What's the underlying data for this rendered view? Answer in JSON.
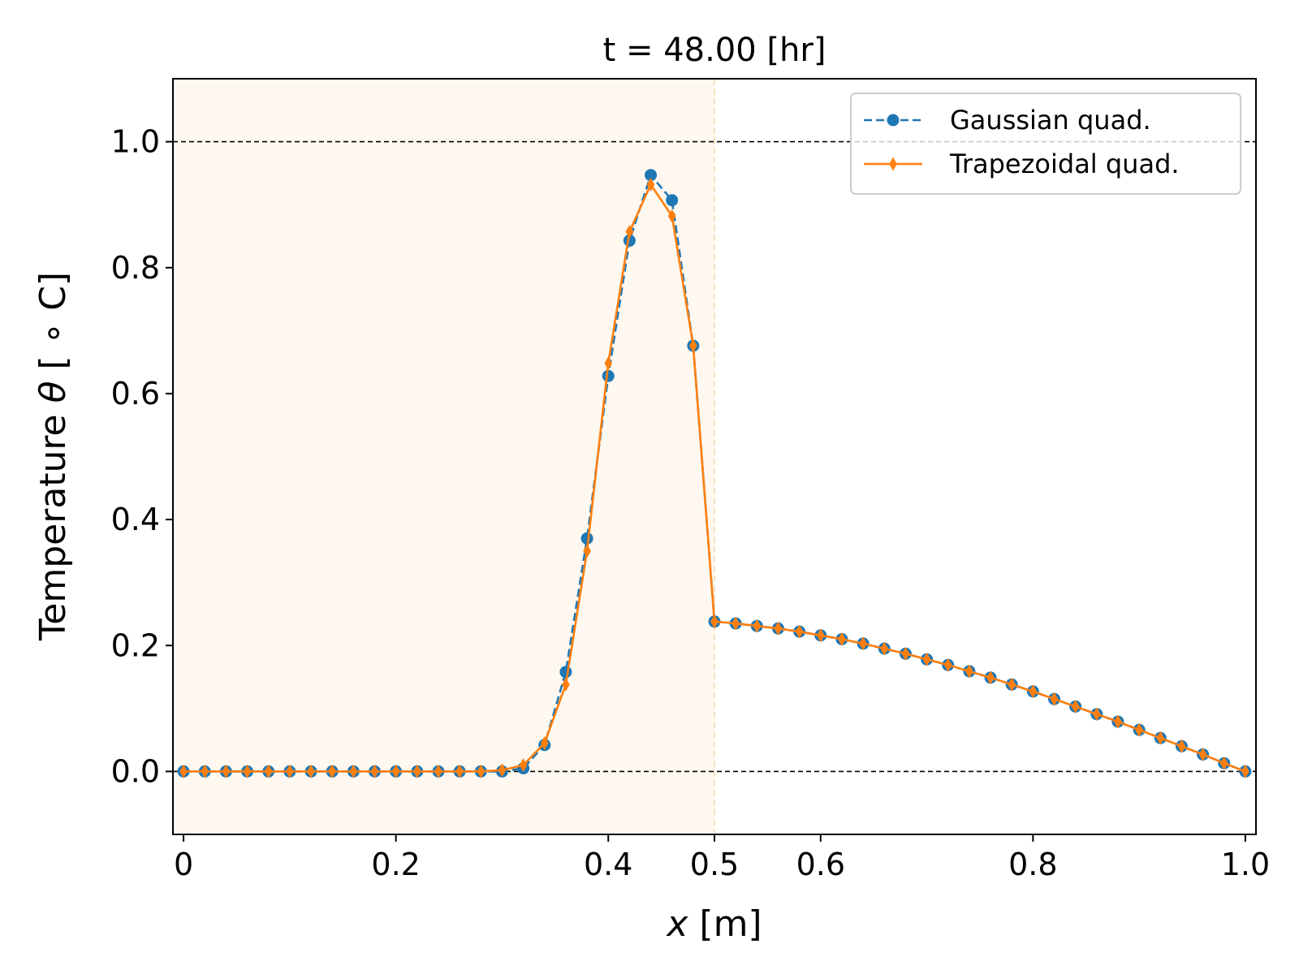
{
  "chart_data": {
    "type": "line",
    "title": "t = 48.00 [hr]",
    "xlabel_var": "x",
    "xlabel_unit": " [m]",
    "ylabel_text": "Temperature ",
    "ylabel_var": "θ",
    "ylabel_unit": " [ ∘ C]",
    "xlim": [
      -0.01,
      1.01
    ],
    "ylim": [
      -0.1,
      1.1
    ],
    "xticks": [
      0,
      0.2,
      0.4,
      0.5,
      0.6,
      0.8,
      1.0
    ],
    "xtick_labels": [
      "0",
      "0.2",
      "0.4",
      "0.5",
      "0.6",
      "0.8",
      "1.0"
    ],
    "yticks": [
      0.0,
      0.2,
      0.4,
      0.6,
      0.8,
      1.0
    ],
    "ytick_labels": [
      "0.0",
      "0.2",
      "0.4",
      "0.6",
      "0.8",
      "1.0"
    ],
    "shaded_region": {
      "x_from": -0.01,
      "x_to": 0.5,
      "color": "#fef8f0",
      "boundary_color": "#fbe0c0"
    },
    "reference_lines_y": [
      0.0,
      1.0
    ],
    "legend_position": "top-right",
    "series": [
      {
        "name": "Gaussian quad.",
        "color": "#1f77b4",
        "line_style": "dashed",
        "marker": "circle",
        "x": [
          0,
          0.02,
          0.04,
          0.06,
          0.08,
          0.1,
          0.12,
          0.14,
          0.16,
          0.18,
          0.2,
          0.22,
          0.24,
          0.26,
          0.28,
          0.3,
          0.32,
          0.34,
          0.36,
          0.38,
          0.4,
          0.42,
          0.44,
          0.46,
          0.48,
          0.5,
          0.52,
          0.54,
          0.56,
          0.58,
          0.6,
          0.62,
          0.64,
          0.66,
          0.68,
          0.7,
          0.72,
          0.74,
          0.76,
          0.78,
          0.8,
          0.82,
          0.84,
          0.86,
          0.88,
          0.9,
          0.92,
          0.94,
          0.96,
          0.98,
          1.0
        ],
        "y": [
          0,
          0,
          0,
          0,
          0,
          0,
          0,
          0,
          0,
          0,
          0,
          0,
          0,
          0,
          0,
          0,
          0.005,
          0.042,
          0.158,
          0.37,
          0.628,
          0.843,
          0.947,
          0.907,
          0.676,
          0.238,
          0.235,
          0.231,
          0.227,
          0.222,
          0.216,
          0.21,
          0.203,
          0.195,
          0.187,
          0.178,
          0.169,
          0.159,
          0.149,
          0.138,
          0.127,
          0.115,
          0.103,
          0.091,
          0.079,
          0.066,
          0.053,
          0.04,
          0.027,
          0.013,
          0
        ]
      },
      {
        "name": "Trapezoidal quad.",
        "color": "#ff7f0e",
        "line_style": "solid",
        "marker": "thin-diamond",
        "x": [
          0,
          0.02,
          0.04,
          0.06,
          0.08,
          0.1,
          0.12,
          0.14,
          0.16,
          0.18,
          0.2,
          0.22,
          0.24,
          0.26,
          0.28,
          0.3,
          0.32,
          0.34,
          0.36,
          0.38,
          0.4,
          0.42,
          0.44,
          0.46,
          0.48,
          0.5,
          0.52,
          0.54,
          0.56,
          0.58,
          0.6,
          0.62,
          0.64,
          0.66,
          0.68,
          0.7,
          0.72,
          0.74,
          0.76,
          0.78,
          0.8,
          0.82,
          0.84,
          0.86,
          0.88,
          0.9,
          0.92,
          0.94,
          0.96,
          0.98,
          1.0
        ],
        "y": [
          0,
          0,
          0,
          0,
          0,
          0,
          0,
          0,
          0,
          0,
          0,
          0,
          0,
          0,
          0,
          0.002,
          0.01,
          0.045,
          0.138,
          0.35,
          0.648,
          0.857,
          0.932,
          0.882,
          0.676,
          0.238,
          0.235,
          0.231,
          0.227,
          0.222,
          0.216,
          0.21,
          0.203,
          0.195,
          0.187,
          0.178,
          0.169,
          0.159,
          0.149,
          0.138,
          0.127,
          0.115,
          0.103,
          0.091,
          0.079,
          0.066,
          0.053,
          0.04,
          0.027,
          0.013,
          0
        ]
      }
    ]
  }
}
